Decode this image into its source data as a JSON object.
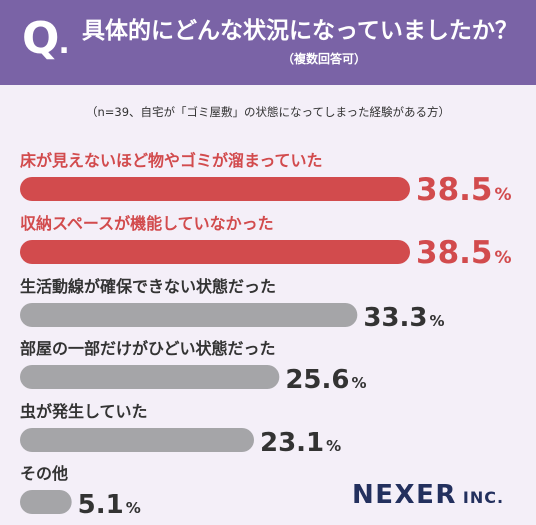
{
  "header": {
    "q_letter": "Q",
    "q_dot": ".",
    "title": "具体的にどんな状況になっていましたか？",
    "subtitle": "（複数回答可）"
  },
  "note": "（n=39、自宅が「ゴミ屋敷」の状態になってしまった経験がある方）",
  "brand": {
    "name": "NEXER",
    "suffix": "INC."
  },
  "colors": {
    "header_bg": "#7a63a6",
    "page_bg": "#f4eff8",
    "highlight": "#d24b4d",
    "regular": "#a5a5a8",
    "brand": "#23305e"
  },
  "chart_data": {
    "type": "bar",
    "orientation": "horizontal",
    "unit": "%",
    "xlim": [
      0,
      38.5
    ],
    "categories": [
      "床が見えないほど物やゴミが溜まっていた",
      "収納スペースが機能していなかった",
      "生活動線が確保できない状態だった",
      "部屋の一部だけがひどい状態だった",
      "虫が発生していた",
      "その他"
    ],
    "values": [
      38.5,
      38.5,
      33.3,
      25.6,
      23.1,
      5.1
    ],
    "value_labels": [
      "38.5",
      "38.5",
      "33.3",
      "25.6",
      "23.1",
      "5.1"
    ],
    "highlighted": [
      true,
      true,
      false,
      false,
      false,
      false
    ]
  }
}
